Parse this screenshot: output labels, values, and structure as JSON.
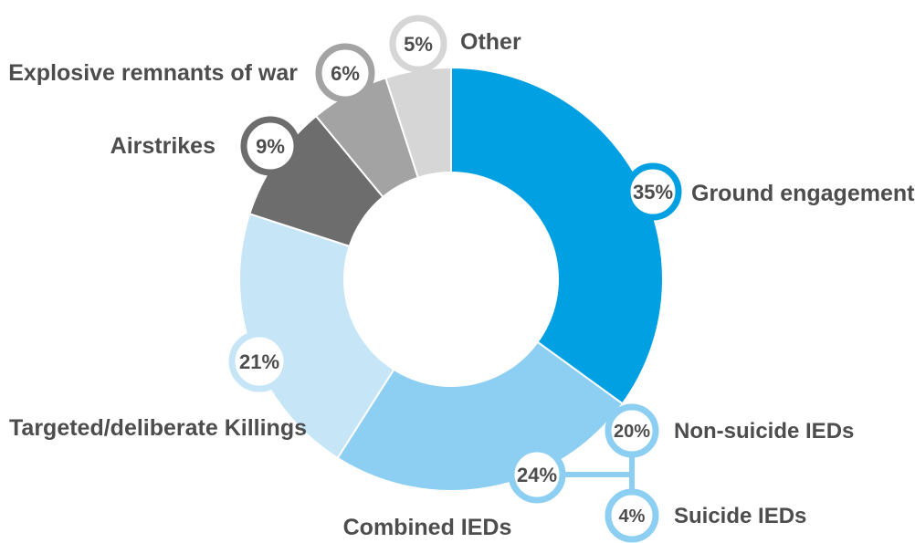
{
  "chart_data": {
    "type": "pie",
    "title": "",
    "colors": {
      "ground": "#00a0e3",
      "ied": "#8dcff2",
      "targeted": "#c6e6f8",
      "airstrikes": "#6d6d6d",
      "erw": "#a3a3a3",
      "other": "#d6d6d6",
      "text": "#4d4d4d"
    },
    "slices": [
      {
        "label": "Ground engagements",
        "value": 35,
        "percent_label": "35%",
        "color": "#00a0e3"
      },
      {
        "label": "Combined IEDs",
        "value": 24,
        "percent_label": "24%",
        "color": "#8dcff2",
        "sub": [
          {
            "label": "Non-suicide IEDs",
            "value": 20,
            "percent_label": "20%"
          },
          {
            "label": "Suicide IEDs",
            "value": 4,
            "percent_label": "4%"
          }
        ]
      },
      {
        "label": "Targeted/deliberate Killings",
        "value": 21,
        "percent_label": "21%",
        "color": "#c6e6f8"
      },
      {
        "label": "Airstrikes",
        "value": 9,
        "percent_label": "9%",
        "color": "#6d6d6d"
      },
      {
        "label": "Explosive remnants of war",
        "value": 6,
        "percent_label": "6%",
        "color": "#a3a3a3"
      },
      {
        "label": "Other",
        "value": 5,
        "percent_label": "5%",
        "color": "#d6d6d6"
      }
    ]
  }
}
